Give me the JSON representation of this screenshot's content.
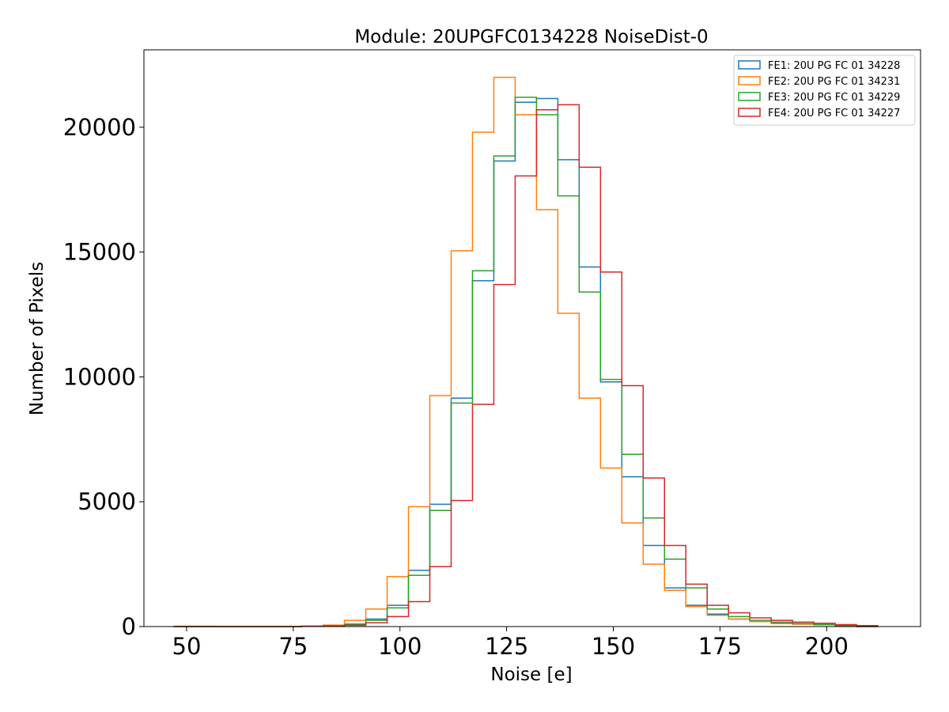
{
  "chart_data": {
    "type": "histogram-step",
    "title": "Module: 20UPGFC0134228 NoiseDist-0",
    "xlabel": "Noise [e]",
    "ylabel": "Number of Pixels",
    "xlim": [
      40,
      222
    ],
    "ylim": [
      0,
      23100
    ],
    "xticks": [
      50,
      75,
      100,
      125,
      150,
      175,
      200
    ],
    "yticks": [
      0,
      5000,
      10000,
      15000,
      20000
    ],
    "bin_edges": [
      47,
      52,
      57,
      62,
      67,
      72,
      77,
      82,
      87,
      92,
      97,
      102,
      107,
      112,
      117,
      122,
      127,
      132,
      137,
      142,
      147,
      152,
      157,
      162,
      167,
      172,
      177,
      182,
      187,
      192,
      197,
      202,
      207,
      212
    ],
    "legend": {
      "placement": "upper right"
    },
    "series": [
      {
        "name": "FE1: 20U PG FC 01 34228",
        "color": "#1f77b4",
        "values": [
          0,
          0,
          0,
          0,
          0,
          0,
          10,
          40,
          100,
          300,
          850,
          2250,
          4900,
          9150,
          13850,
          18650,
          21000,
          21150,
          18700,
          14400,
          9800,
          6000,
          3250,
          1550,
          850,
          500,
          300,
          200,
          150,
          100,
          80,
          40,
          0
        ]
      },
      {
        "name": "FE2: 20U PG FC 01 34231",
        "color": "#ff7f0e",
        "values": [
          10,
          10,
          0,
          0,
          0,
          0,
          20,
          60,
          250,
          700,
          2000,
          4800,
          9250,
          15050,
          19800,
          22000,
          20500,
          16700,
          12550,
          9150,
          6350,
          4150,
          2500,
          1450,
          800,
          450,
          300,
          200,
          120,
          100,
          80,
          30,
          0
        ]
      },
      {
        "name": "FE3: 20U PG FC 01 34229",
        "color": "#2ca02c",
        "values": [
          0,
          0,
          0,
          0,
          0,
          0,
          10,
          30,
          80,
          250,
          750,
          2050,
          4650,
          8950,
          14250,
          18850,
          21200,
          20500,
          17250,
          13400,
          9900,
          6900,
          4350,
          2700,
          1550,
          700,
          400,
          250,
          180,
          120,
          80,
          40,
          0
        ]
      },
      {
        "name": "FE4: 20U PG FC 01 34227",
        "color": "#d62728",
        "values": [
          0,
          0,
          0,
          0,
          0,
          0,
          10,
          20,
          50,
          150,
          400,
          1000,
          2400,
          5050,
          8900,
          13700,
          18050,
          20700,
          20900,
          18400,
          14200,
          9650,
          5950,
          3250,
          1700,
          850,
          550,
          350,
          250,
          180,
          130,
          80,
          40
        ]
      }
    ]
  }
}
